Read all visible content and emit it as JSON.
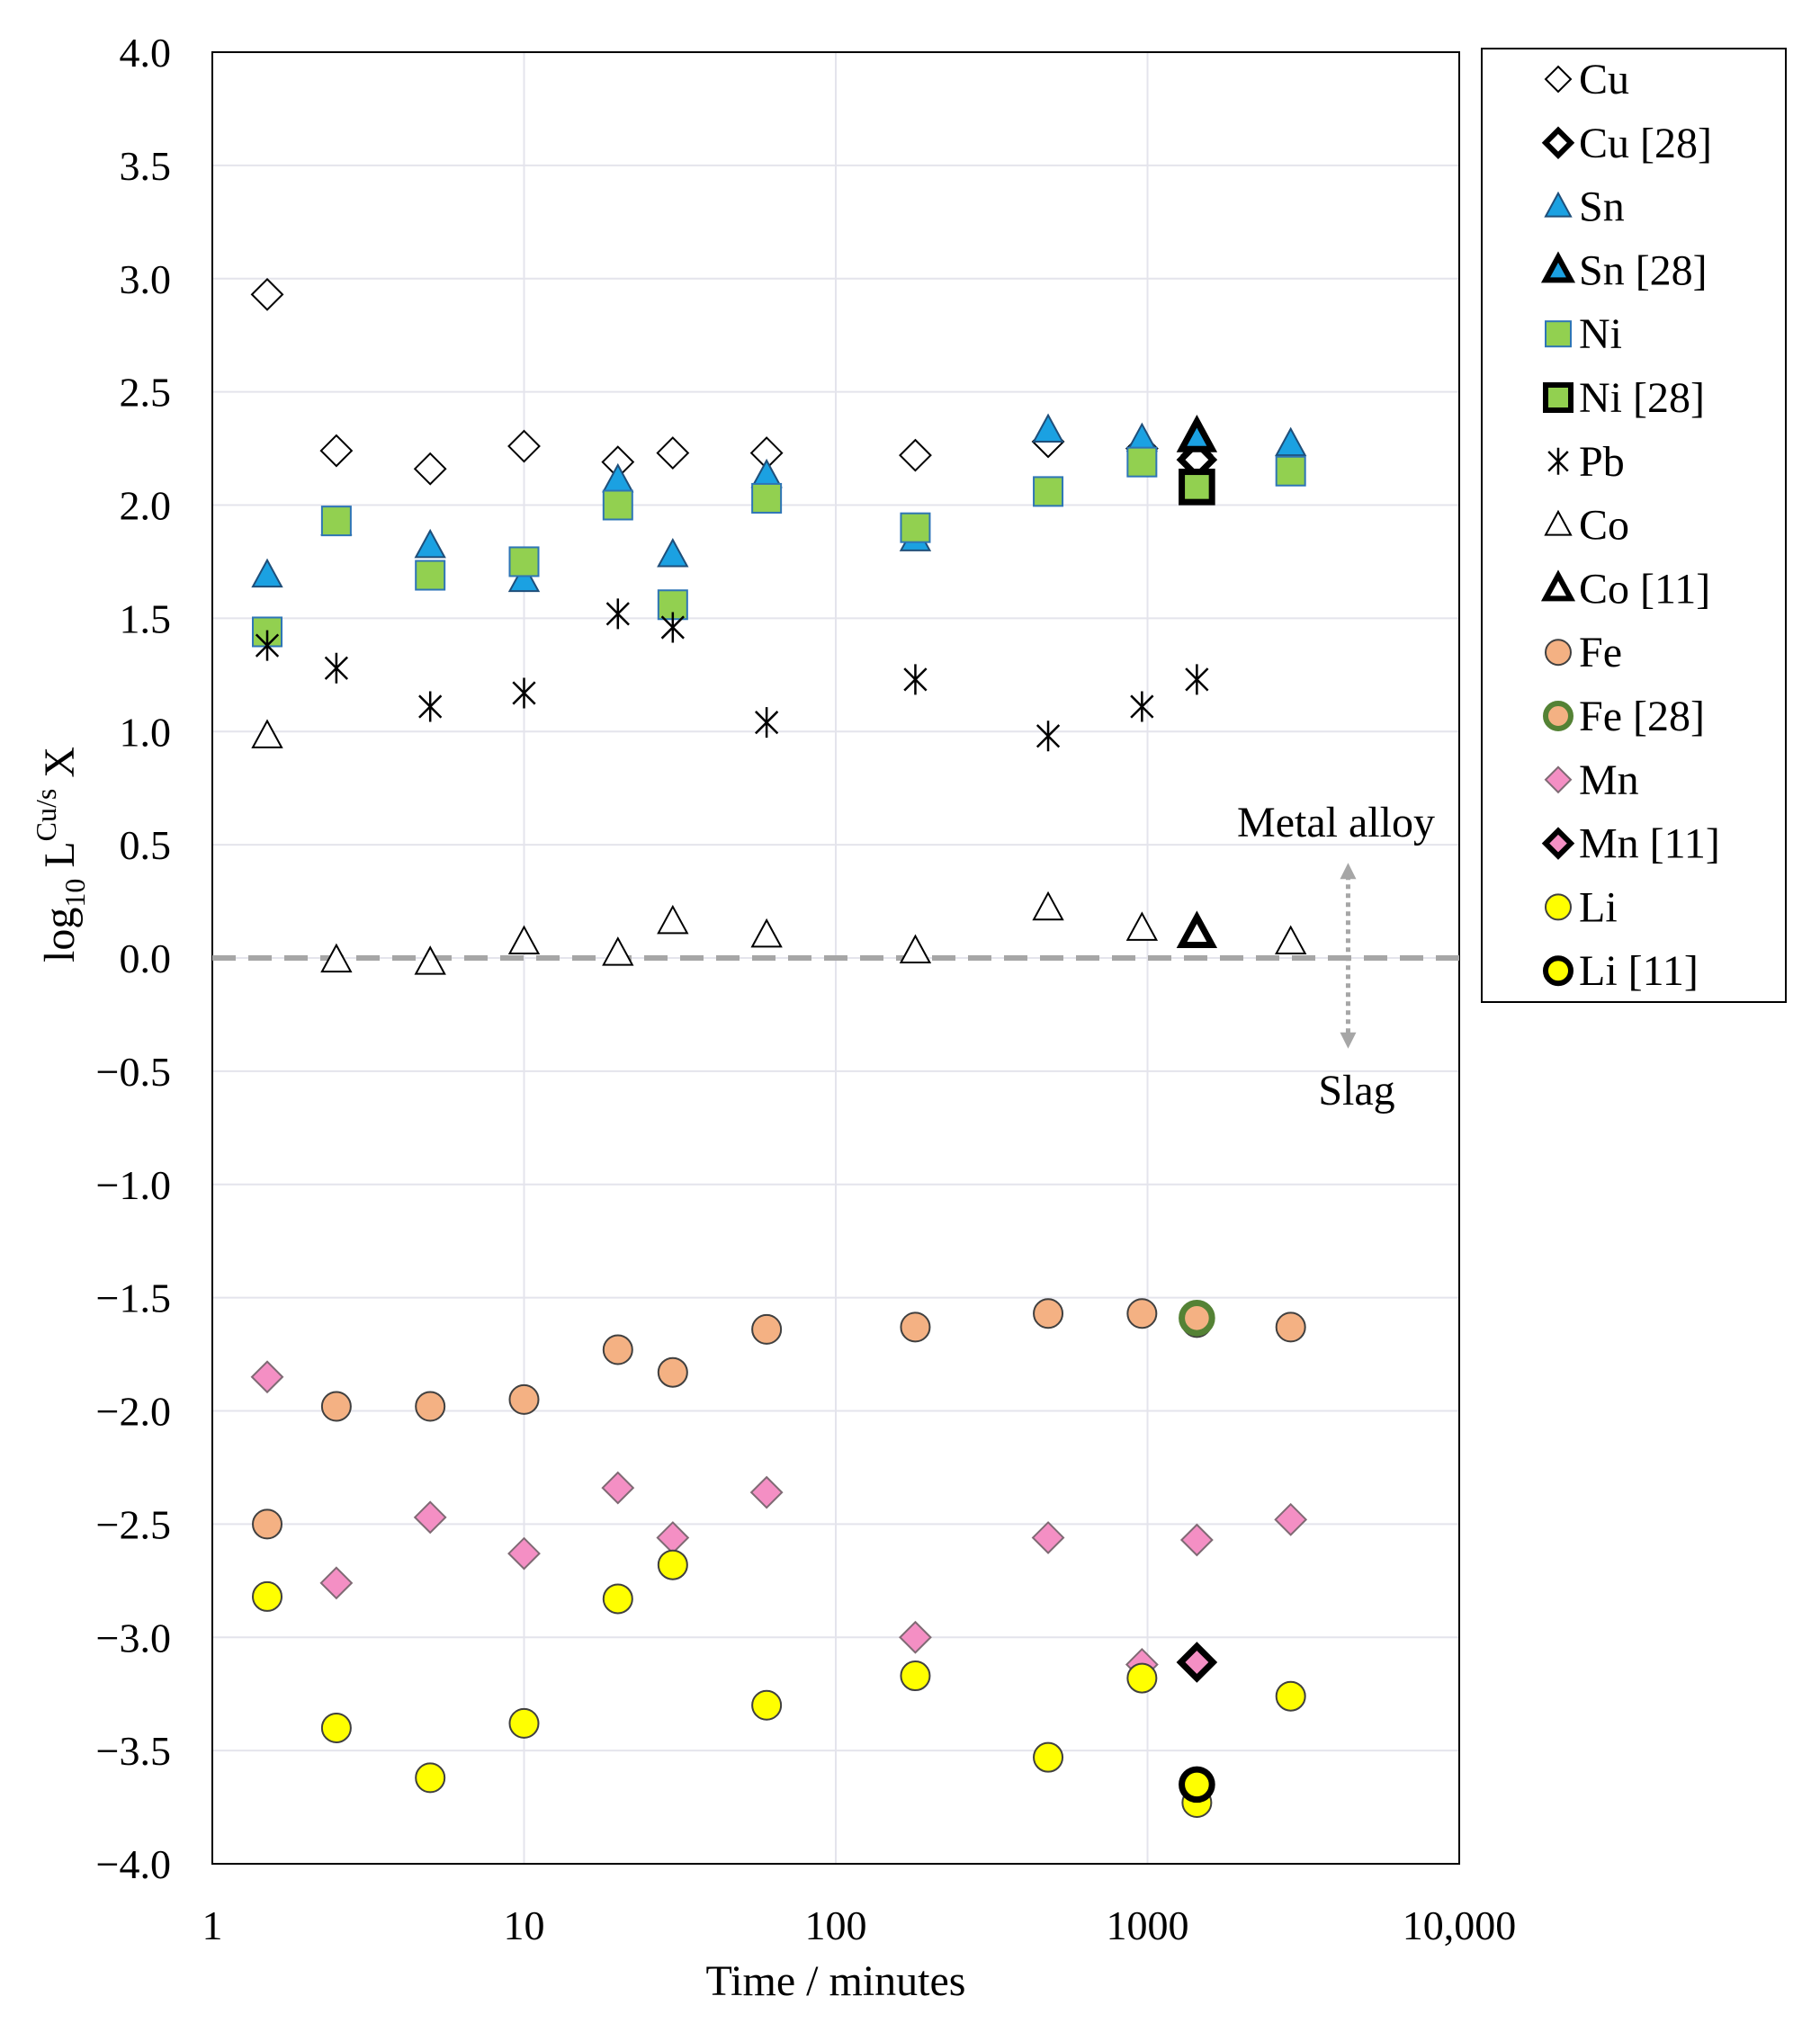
{
  "chart_data": {
    "type": "scatter",
    "title": "",
    "xlabel": "Time / minutes",
    "ylabel_main": "log",
    "ylabel_sub": "10",
    "ylabel_mid": " L",
    "ylabel_sup": "Cu/s",
    "ylabel_end": " X",
    "xscale": "log",
    "xlim": [
      1,
      10000
    ],
    "ylim": [
      -4.0,
      4.0
    ],
    "x_ticks": [
      1,
      10,
      100,
      1000,
      10000
    ],
    "x_tick_labels": [
      "1",
      "10",
      "100",
      "1000",
      "10,000"
    ],
    "y_ticks": [
      4.0,
      3.5,
      3.0,
      2.5,
      2.0,
      1.5,
      1.0,
      0.5,
      0.0,
      -0.5,
      -1.0,
      -1.5,
      -2.0,
      -2.5,
      -3.0,
      -3.5,
      -4.0
    ],
    "y_tick_labels": [
      "4.0",
      "3.5",
      "3.0",
      "2.5",
      "2.0",
      "1.5",
      "1.0",
      "0.5",
      "0.0",
      "−0.5",
      "−1.0",
      "−1.5",
      "−2.0",
      "−2.5",
      "−3.0",
      "−3.5",
      "−4.0"
    ],
    "gridlines": "both",
    "reference_line_y": 0.0,
    "annotations": {
      "metal": "Metal alloy",
      "slag": "Slag"
    },
    "arrow_x": 4400,
    "arrow_y_top": 0.42,
    "arrow_y_bottom": -0.4,
    "legend_position": "right",
    "series": [
      {
        "name": "Cu",
        "marker": "diamond",
        "fill": "#ffffff",
        "stroke": "#000000",
        "bold": false,
        "x": [
          1.5,
          2.5,
          5,
          10,
          20,
          30,
          60,
          180,
          480,
          960,
          1440
        ],
        "y": [
          2.93,
          2.24,
          2.16,
          2.26,
          2.19,
          2.23,
          2.23,
          2.22,
          2.28,
          2.25,
          2.22
        ]
      },
      {
        "name": "Cu [28]",
        "marker": "diamond",
        "fill": "#ffffff",
        "stroke": "#000000",
        "bold": true,
        "x": [
          1440
        ],
        "y": [
          2.2
        ]
      },
      {
        "name": "Sn",
        "marker": "triangle",
        "fill": "#1ba1e2",
        "stroke": "#1f4e79",
        "bold": false,
        "x": [
          1.5,
          2.5,
          5,
          10,
          20,
          30,
          60,
          180,
          480,
          960,
          2880
        ],
        "y": [
          1.69,
          1.92,
          1.82,
          1.67,
          2.11,
          1.78,
          2.13,
          1.85,
          2.33,
          2.29,
          2.27
        ]
      },
      {
        "name": "Sn [28]",
        "marker": "triangle",
        "fill": "#1ba1e2",
        "stroke": "#000000",
        "bold": true,
        "x": [
          1440
        ],
        "y": [
          2.3
        ]
      },
      {
        "name": "Ni",
        "marker": "square",
        "fill": "#92d050",
        "stroke": "#2e75b6",
        "bold": false,
        "x": [
          1.5,
          2.5,
          5,
          10,
          20,
          30,
          60,
          180,
          480,
          960,
          2880
        ],
        "y": [
          1.44,
          1.93,
          1.69,
          1.75,
          2.0,
          1.56,
          2.03,
          1.9,
          2.06,
          2.19,
          2.15
        ]
      },
      {
        "name": "Ni [28]",
        "marker": "square",
        "fill": "#92d050",
        "stroke": "#000000",
        "bold": true,
        "x": [
          1440
        ],
        "y": [
          2.08
        ]
      },
      {
        "name": "Pb",
        "marker": "asterisk",
        "fill": "none",
        "stroke": "#000000",
        "bold": false,
        "x": [
          1.5,
          2.5,
          5,
          10,
          20,
          30,
          60,
          180,
          480,
          960,
          1440
        ],
        "y": [
          1.38,
          1.28,
          1.11,
          1.17,
          1.52,
          1.46,
          1.04,
          1.23,
          0.98,
          1.11,
          1.23
        ]
      },
      {
        "name": "Co",
        "marker": "triangle",
        "fill": "#ffffff",
        "stroke": "#000000",
        "bold": false,
        "x": [
          1.5,
          2.5,
          5,
          10,
          20,
          30,
          60,
          180,
          480,
          960,
          2880
        ],
        "y": [
          0.98,
          -0.01,
          -0.02,
          0.07,
          0.02,
          0.16,
          0.1,
          0.03,
          0.22,
          0.13,
          0.07
        ]
      },
      {
        "name": "Co [11]",
        "marker": "triangle",
        "fill": "#ffffff",
        "stroke": "#000000",
        "bold": true,
        "x": [
          1440
        ],
        "y": [
          0.11
        ]
      },
      {
        "name": "Fe",
        "marker": "circle",
        "fill": "#f4b183",
        "stroke": "#404040",
        "bold": false,
        "x": [
          1.5,
          2.5,
          5,
          10,
          20,
          30,
          60,
          180,
          480,
          960,
          1440,
          2880
        ],
        "y": [
          -2.5,
          -1.98,
          -1.98,
          -1.95,
          -1.73,
          -1.83,
          -1.64,
          -1.63,
          -1.57,
          -1.57,
          -1.61,
          -1.63
        ]
      },
      {
        "name": "Fe [28]",
        "marker": "circle",
        "fill": "#f4b183",
        "stroke": "#548235",
        "bold": true,
        "x": [
          1440
        ],
        "y": [
          -1.59
        ]
      },
      {
        "name": "Mn",
        "marker": "diamond",
        "fill": "#f48fc4",
        "stroke": "#7f6a74",
        "bold": false,
        "x": [
          1.5,
          2.5,
          5,
          10,
          20,
          30,
          60,
          180,
          480,
          960,
          1440,
          2880
        ],
        "y": [
          -1.85,
          -2.76,
          -2.47,
          -2.63,
          -2.34,
          -2.56,
          -2.36,
          -3.0,
          -2.56,
          -3.12,
          -2.57,
          -2.48
        ]
      },
      {
        "name": "Mn [11]",
        "marker": "diamond",
        "fill": "#f48fc4",
        "stroke": "#000000",
        "bold": true,
        "x": [
          1440
        ],
        "y": [
          -3.11
        ]
      },
      {
        "name": "Li",
        "marker": "circle",
        "fill": "#ffff00",
        "stroke": "#404040",
        "bold": false,
        "x": [
          1.5,
          2.5,
          5,
          10,
          20,
          30,
          60,
          180,
          480,
          960,
          1440,
          2880
        ],
        "y": [
          -2.82,
          -3.4,
          -3.62,
          -3.38,
          -2.83,
          -2.68,
          -3.3,
          -3.17,
          -3.53,
          -3.18,
          -3.73,
          -3.26
        ]
      },
      {
        "name": "Li [11]",
        "marker": "circle",
        "fill": "#ffff00",
        "stroke": "#000000",
        "bold": true,
        "x": [
          1440
        ],
        "y": [
          -3.65
        ]
      }
    ]
  }
}
